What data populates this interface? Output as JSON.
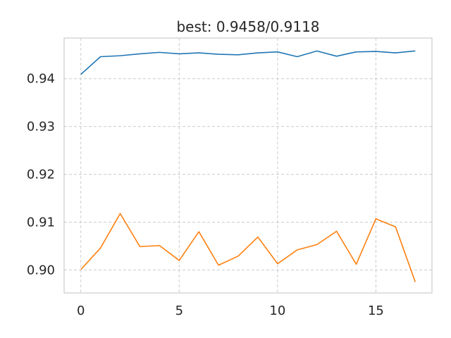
{
  "chart_data": {
    "type": "line",
    "title": "best: 0.9458/0.9118",
    "xlabel": "",
    "ylabel": "",
    "xlim": [
      -0.85,
      17.85
    ],
    "ylim": [
      0.8952,
      0.9485
    ],
    "xticks": [
      0,
      5,
      10,
      15
    ],
    "xtick_labels": [
      "0",
      "5",
      "10",
      "15"
    ],
    "yticks": [
      0.9,
      0.91,
      0.92,
      0.93,
      0.94
    ],
    "ytick_labels": [
      "0.90",
      "0.91",
      "0.92",
      "0.93",
      "0.94"
    ],
    "grid": true,
    "x": [
      0,
      1,
      2,
      3,
      4,
      5,
      6,
      7,
      8,
      9,
      10,
      11,
      12,
      13,
      14,
      15,
      16,
      17
    ],
    "series": [
      {
        "color": "#1f77b4",
        "values": [
          0.9409,
          0.9446,
          0.9448,
          0.9452,
          0.9455,
          0.9452,
          0.9454,
          0.9451,
          0.945,
          0.9454,
          0.9456,
          0.9446,
          0.9458,
          0.9447,
          0.9456,
          0.9457,
          0.9454,
          0.9458
        ]
      },
      {
        "color": "#ff7f0e",
        "values": [
          0.9001,
          0.9046,
          0.9118,
          0.9049,
          0.9051,
          0.902,
          0.908,
          0.901,
          0.9029,
          0.9069,
          0.9013,
          0.9042,
          0.9053,
          0.9081,
          0.9012,
          0.9107,
          0.909,
          0.8975
        ]
      }
    ]
  }
}
